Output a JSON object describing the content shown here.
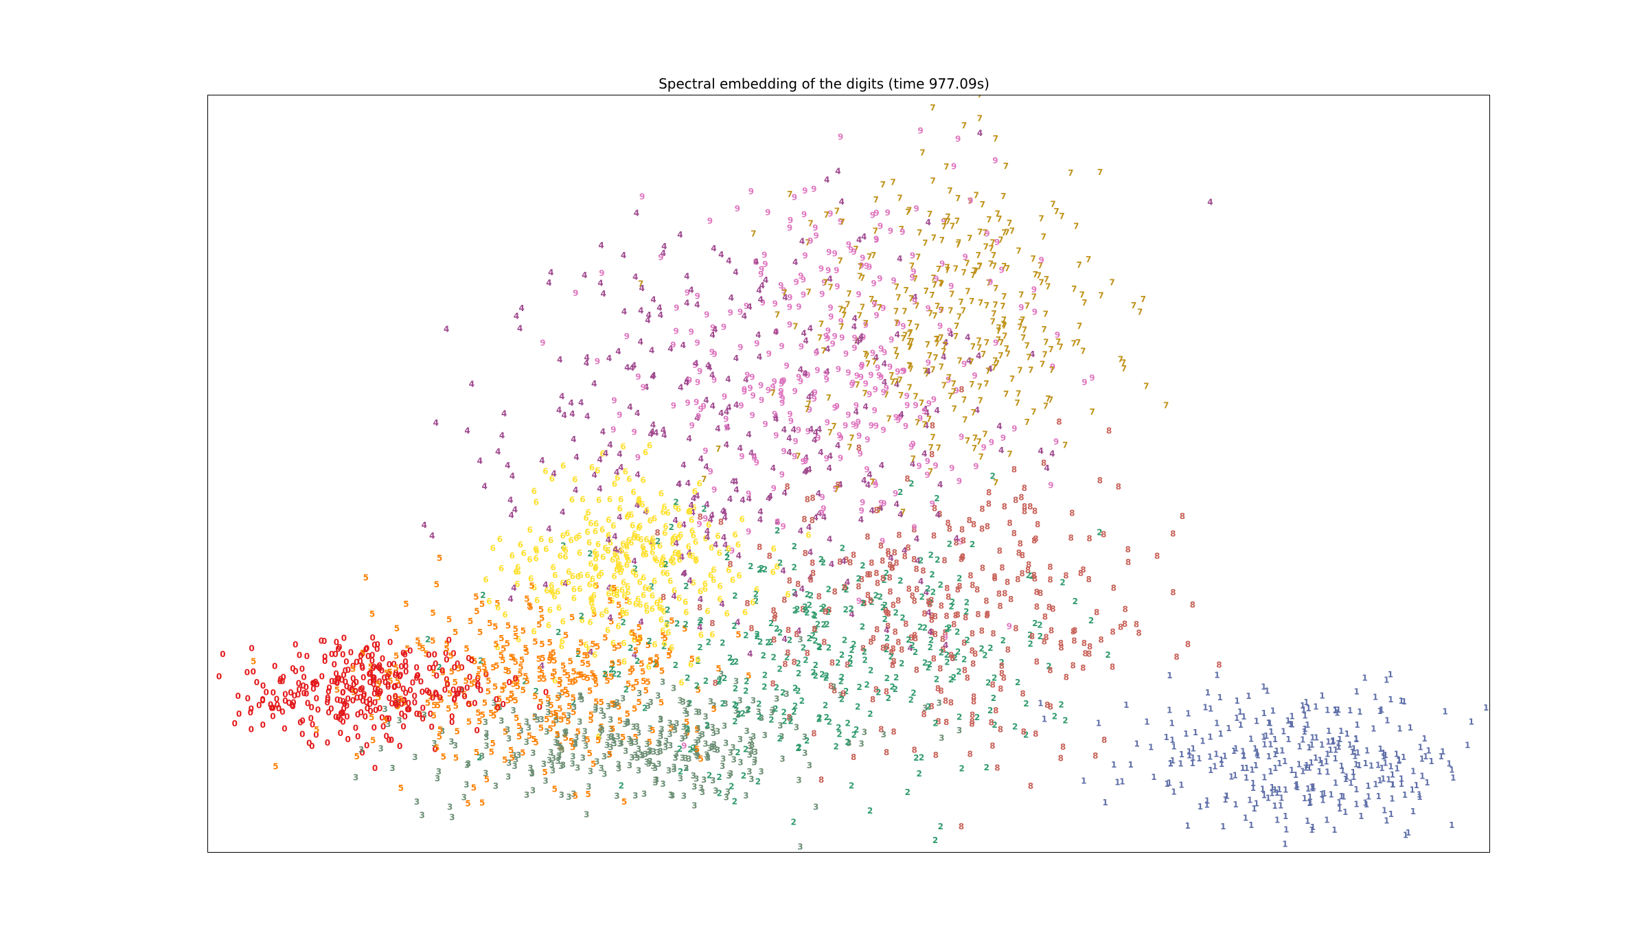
{
  "chart_data": {
    "type": "scatter",
    "title": "Spectral embedding of the digits (time 977.09s)",
    "xlabel": "",
    "ylabel": "",
    "xticks": "none",
    "yticks": "none",
    "grid": false,
    "legend": "none",
    "xlim": [
      0,
      1
    ],
    "ylim": [
      0,
      1
    ],
    "marker": "digit-text",
    "series": [
      {
        "label": "0",
        "color": "#e41a1c",
        "center": [
          0.12,
          0.21
        ],
        "spread": [
          0.05,
          0.03
        ]
      },
      {
        "label": "1",
        "color": "#5f6fa8",
        "center": [
          0.86,
          0.11
        ],
        "spread": [
          0.07,
          0.05
        ]
      },
      {
        "label": "2",
        "color": "#2e9a6c",
        "center": [
          0.48,
          0.26
        ],
        "spread": [
          0.1,
          0.08
        ]
      },
      {
        "label": "3",
        "color": "#6b8e73",
        "center": [
          0.33,
          0.14
        ],
        "spread": [
          0.08,
          0.04
        ]
      },
      {
        "label": "4",
        "color": "#a04a8f",
        "center": [
          0.42,
          0.55
        ],
        "spread": [
          0.1,
          0.14
        ]
      },
      {
        "label": "5",
        "color": "#ff7f00",
        "center": [
          0.26,
          0.22
        ],
        "spread": [
          0.07,
          0.06
        ]
      },
      {
        "label": "6",
        "color": "#ffe030",
        "center": [
          0.33,
          0.38
        ],
        "spread": [
          0.05,
          0.06
        ]
      },
      {
        "label": "7",
        "color": "#c0921a",
        "center": [
          0.58,
          0.7
        ],
        "spread": [
          0.06,
          0.1
        ]
      },
      {
        "label": "8",
        "color": "#c86158",
        "center": [
          0.58,
          0.32
        ],
        "spread": [
          0.09,
          0.1
        ]
      },
      {
        "label": "9",
        "color": "#e077c0",
        "center": [
          0.48,
          0.64
        ],
        "spread": [
          0.07,
          0.12
        ]
      }
    ]
  }
}
